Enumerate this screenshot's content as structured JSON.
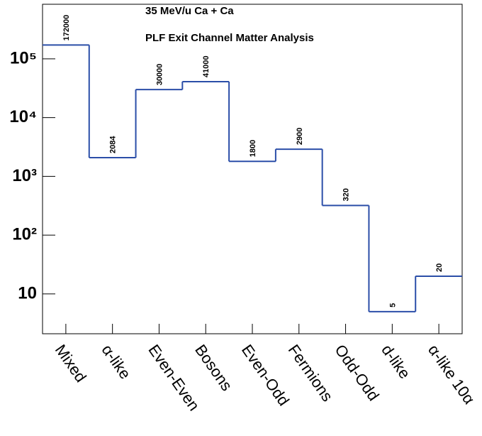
{
  "chart_data": {
    "type": "step",
    "title": "35 MeV/u Ca + Ca",
    "subtitle": "PLF Exit Channel Matter Analysis",
    "categories": [
      "Mixed",
      "α-like",
      "Even-Even",
      "Bosons",
      "Even-Odd",
      "Fermions",
      "Odd-Odd",
      "d-like",
      "α-like 10α"
    ],
    "values": [
      172000,
      2084,
      30000,
      41000,
      1800,
      2900,
      320,
      5,
      20
    ],
    "color": "#2b4ea8",
    "log_y": true,
    "ylim": [
      2.1,
      850000
    ],
    "yticks": [
      {
        "value": 10,
        "label": "10"
      },
      {
        "value": 100,
        "label": "10²"
      },
      {
        "value": 1000,
        "label": "10³"
      },
      {
        "value": 10000,
        "label": "10⁴"
      },
      {
        "value": 100000,
        "label": "10⁵"
      }
    ]
  }
}
